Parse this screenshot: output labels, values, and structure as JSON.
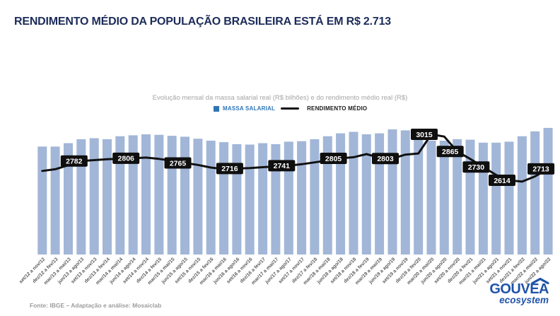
{
  "title": "RENDIMENTO MÉDIO DA POPULAÇÃO BRASILEIRA ESTÁ EM R$ 2.713",
  "subtitle": "Evolução mensal da massa salarial real (R$ bilhões) e do rendimento médio real (R$)",
  "legend": {
    "bar_label": "MASSA SALARIAL",
    "line_label": "RENDIMENTO MÉDIO"
  },
  "footer": {
    "source": "Fonte: IBGE – Adaptação e análise: Mosaiclab"
  },
  "logo": {
    "name": "GOUVEA",
    "tagline": "ecosystem"
  },
  "colors": {
    "title_navy": "#1c2c59",
    "legend_blue": "#2e75b6",
    "bar_fill": "#a2b6d8",
    "line_black": "#111111",
    "label_box_bg": "#0f0f0f",
    "label_box_text": "#ffffff",
    "subtitle_gray": "#a5a5a5",
    "axis_label_gray": "#595959",
    "footer_gray": "#9c9c9c",
    "logo_blue": "#2053a8",
    "background": "#ffffff"
  },
  "chart_data": {
    "type": "bar+line",
    "title": "Evolução mensal da massa salarial real (R$ bilhões) e do rendimento médio real (R$)",
    "legend_position": "top",
    "grid": false,
    "y_axis_visible": false,
    "x_labels_rotation_deg": -45,
    "categories": [
      "set/12 a nov/12",
      "dez/12 a fev/13",
      "mar/13 a mai/13",
      "jun/13 a ago/13",
      "set/13 a nov/13",
      "dez/13 a fev/14",
      "mar/14 a mai/14",
      "jun/14 a ago/14",
      "set/14 a nov/14",
      "dez/14 a fev/15",
      "mar/15 a mai/15",
      "jun/15 a ago/15",
      "set/15 a nov/15",
      "dez/15 a fev/16",
      "mar/16 a mai/16",
      "jun/16 a ago/16",
      "set/16 a nov/16",
      "dez/16 a fev/17",
      "mar/17 a mai/17",
      "jun/17 a ago/17",
      "set/17 a nov/17",
      "dez/17 a fev/18",
      "mar/18 a mai/18",
      "jun/18 a ago/18",
      "set/18 a nov/18",
      "dez/18 a fev/19",
      "mar/19 a mai/19",
      "jun/19 a ago/19",
      "set/19 a nov/19",
      "dez/19 a fev/20",
      "mar/20 a mai/20",
      "jun/20 a ago/20",
      "set/20 a nov/20",
      "dez/20 a fev/21",
      "mar/21 a mai/21",
      "jun/21 a ago/21",
      "set/21 a nov/21",
      "dez/21 a fev/22",
      "mar/22 a mai/22",
      "jun/22 a ago/22"
    ],
    "series": [
      {
        "name": "MASSA SALARIAL",
        "type": "bar",
        "unit": "R$ bilhões (estimado, sem eixo no gráfico)",
        "color": "#a2b6d8",
        "values": [
          220,
          220,
          227,
          235,
          237,
          235,
          241,
          243,
          245,
          244,
          242,
          240,
          236,
          232,
          229,
          225,
          224,
          227,
          225,
          230,
          231,
          235,
          241,
          247,
          250,
          245,
          247,
          255,
          253,
          256,
          232,
          232,
          235,
          234,
          228,
          228,
          230,
          241,
          251,
          258
        ]
      },
      {
        "name": "RENDIMENTO MÉDIO",
        "type": "line",
        "unit": "R$",
        "color": "#111111",
        "values": [
          2695,
          2710,
          2745,
          2782,
          2790,
          2798,
          2802,
          2806,
          2812,
          2800,
          2785,
          2765,
          2748,
          2725,
          2712,
          2716,
          2720,
          2728,
          2735,
          2741,
          2754,
          2770,
          2788,
          2805,
          2815,
          2842,
          2812,
          2803,
          2838,
          2848,
          3015,
          2995,
          2865,
          2800,
          2730,
          2660,
          2614,
          2602,
          2648,
          2713
        ],
        "labeled_points": [
          {
            "index": 3,
            "value": 2782
          },
          {
            "index": 7,
            "value": 2806
          },
          {
            "index": 11,
            "value": 2765
          },
          {
            "index": 15,
            "value": 2716
          },
          {
            "index": 19,
            "value": 2741
          },
          {
            "index": 23,
            "value": 2805
          },
          {
            "index": 27,
            "value": 2803
          },
          {
            "index": 30,
            "value": 3015
          },
          {
            "index": 32,
            "value": 2865
          },
          {
            "index": 34,
            "value": 2730
          },
          {
            "index": 36,
            "value": 2614
          },
          {
            "index": 39,
            "value": 2713
          }
        ]
      }
    ]
  }
}
